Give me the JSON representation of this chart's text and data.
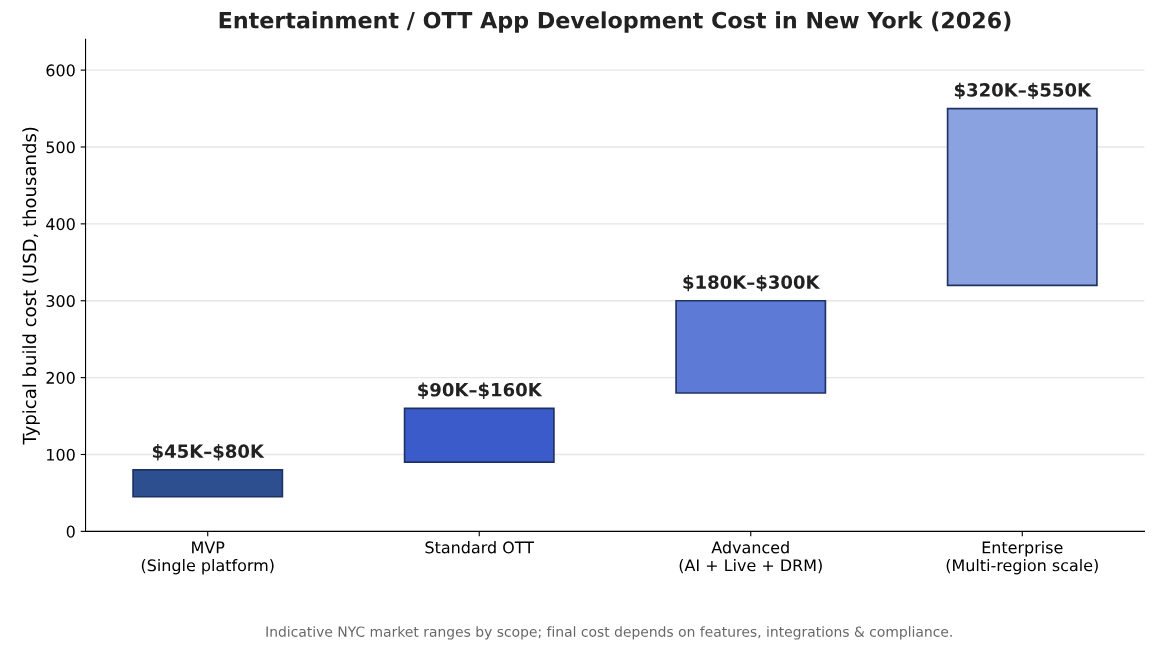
{
  "chart_data": {
    "type": "bar",
    "title": "Entertainment / OTT App Development Cost in New York (2026)",
    "ylabel": "Typical build cost (USD, thousands)",
    "categories": [
      "MVP\n(Single platform)",
      "Standard OTT",
      "Advanced\n(AI + Live + DRM)",
      "Enterprise\n(Multi-region scale)"
    ],
    "base": [
      45,
      90,
      180,
      320
    ],
    "values": [
      35,
      70,
      120,
      230
    ],
    "colors": [
      "#2e4f8f",
      "#3c5bcb",
      "#5d7bd6",
      "#8aa2e0"
    ],
    "ylim": [
      0,
      640
    ],
    "yticks": [
      0,
      100,
      200,
      300,
      400,
      500,
      600
    ],
    "grid": "y",
    "legend": false,
    "annotations": [
      {
        "text": "$45K–$80K",
        "x": "MVP\n(Single platform)",
        "y": 80
      },
      {
        "text": "$90K–$160K",
        "x": "Standard OTT",
        "y": 160
      },
      {
        "text": "$180K–$300K",
        "x": "Advanced\n(AI + Live + DRM)",
        "y": 300
      },
      {
        "text": "$320K–$550K",
        "x": "Enterprise\n(Multi-region scale)",
        "y": 550
      },
      "Indicative NYC market ranges by scope; final cost depends on features, integrations & compliance."
    ]
  }
}
